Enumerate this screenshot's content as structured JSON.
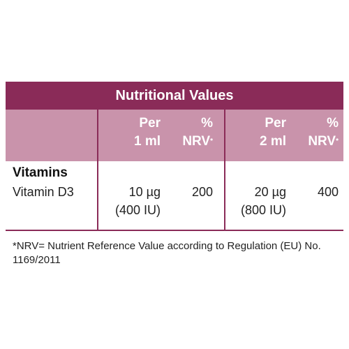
{
  "table": {
    "title": "Nutritional Values",
    "headers": [
      {
        "top": "Per",
        "bottom": "1 ml"
      },
      {
        "top": "%",
        "bottom": "NRV",
        "mark": "*"
      },
      {
        "top": "Per",
        "bottom": "2 ml"
      },
      {
        "top": "%",
        "bottom": "NRV",
        "mark": "*"
      }
    ],
    "section": "Vitamins",
    "rows": [
      {
        "name": "Vitamin D3",
        "cells": [
          [
            "10 µg",
            "(400 IU)"
          ],
          [
            "200"
          ],
          [
            "20 µg",
            "(800 IU)"
          ],
          [
            "400"
          ]
        ]
      }
    ]
  },
  "footnote": "*NRV= Nutrient Reference Value according to Regulation (EU) No. 1169/2011"
}
